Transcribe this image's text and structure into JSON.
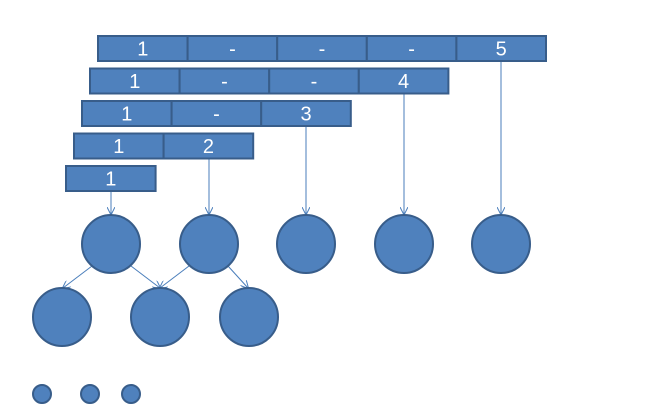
{
  "rows": [
    [
      "1",
      "-",
      "-",
      "-",
      "5"
    ],
    [
      "1",
      "-",
      "-",
      "4"
    ],
    [
      "1",
      "-",
      "3"
    ],
    [
      "1",
      "2"
    ],
    [
      "1"
    ]
  ]
}
